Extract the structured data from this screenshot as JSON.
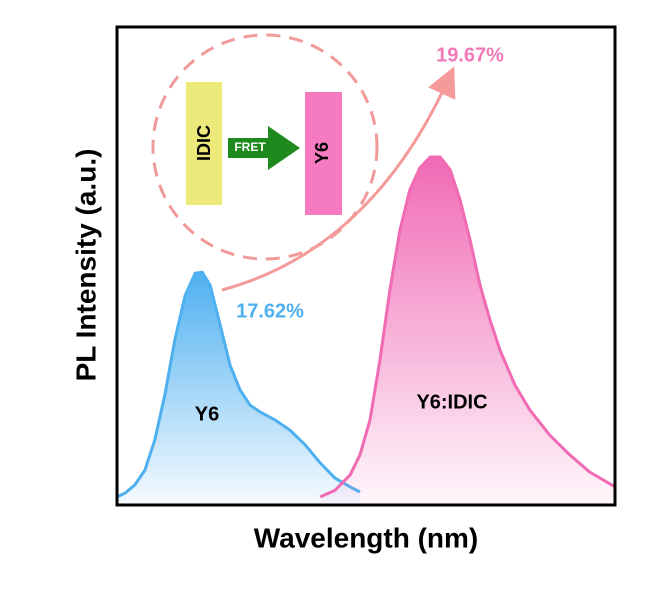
{
  "chart_data": {
    "type": "area",
    "xlabel": "Wavelength (nm)",
    "ylabel": "PL Intensity (a.u.)",
    "xlim": [
      0,
      100
    ],
    "ylim": [
      0,
      1
    ],
    "series": [
      {
        "name": "Y6",
        "color": "#4fb0f0",
        "x": [
          0,
          1.6,
          3.6,
          5.6,
          7.6,
          9.6,
          11.6,
          13.7,
          15.7,
          17.1,
          18.7,
          20.7,
          22.7,
          24.7,
          26.7,
          28.7,
          31.7,
          34.7,
          37.8,
          40.8,
          43.8,
          46.8,
          48.8
        ],
        "values": [
          0.017,
          0.025,
          0.042,
          0.073,
          0.136,
          0.23,
          0.345,
          0.439,
          0.485,
          0.487,
          0.46,
          0.377,
          0.293,
          0.241,
          0.209,
          0.195,
          0.178,
          0.157,
          0.126,
          0.088,
          0.056,
          0.038,
          0.027
        ]
      },
      {
        "name": "Y6:IDIC",
        "color": "#f06ab4",
        "x": [
          40.8,
          43.8,
          46.8,
          48.8,
          50.8,
          52.8,
          54.8,
          56.8,
          58.8,
          60.8,
          62.9,
          64.9,
          66.9,
          68.9,
          70.9,
          72.9,
          74.9,
          76.9,
          79.9,
          82.9,
          86.9,
          90.9,
          94.9,
          100
        ],
        "values": [
          0.017,
          0.031,
          0.063,
          0.105,
          0.178,
          0.303,
          0.45,
          0.575,
          0.659,
          0.705,
          0.728,
          0.728,
          0.701,
          0.638,
          0.554,
          0.46,
          0.387,
          0.324,
          0.251,
          0.199,
          0.146,
          0.105,
          0.069,
          0.038
        ]
      }
    ],
    "annotations": {
      "y6_plqy": "17.62%",
      "blend_plqy": "19.67%",
      "donor": "IDIC",
      "transfer": "FRET",
      "acceptor": "Y6"
    }
  }
}
